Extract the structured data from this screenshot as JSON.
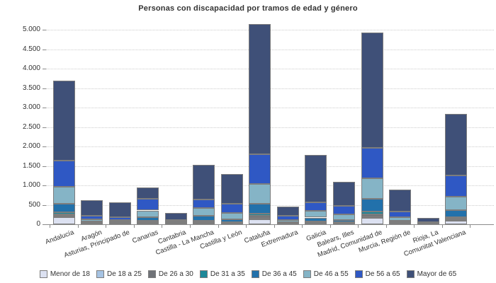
{
  "title": "Personas con discapacidad por tramos de edad y género",
  "chart_data": {
    "type": "bar",
    "stacked": true,
    "title": "Personas con discapacidad por tramos de edad y género",
    "xlabel": "",
    "ylabel": "",
    "ylim": [
      0,
      5200
    ],
    "grid": "horizontal-dotted",
    "legend_position": "bottom",
    "categories": [
      "Andalucía",
      "Aragón",
      "Asturias, Principado de",
      "Canarias",
      "Cantabria",
      "Castilla - La Mancha",
      "Castilla y León",
      "Cataluña",
      "Extremadura",
      "Galicia",
      "Balears, Illes",
      "Madrid, Comunidad de",
      "Murcia, Región de",
      "Rioja, La",
      "Comunitat Valenciana"
    ],
    "yticks": [
      0,
      500,
      1000,
      1500,
      2000,
      2500,
      3000,
      3500,
      4000,
      4500,
      5000
    ],
    "ytick_labels": [
      "0",
      "500",
      "1.000",
      "1.500",
      "2.000",
      "2.500",
      "3.000",
      "3.500",
      "4.000",
      "4.500",
      "5.000"
    ],
    "series": [
      {
        "name": "Menor de 18",
        "color": "#dce1f1",
        "values": [
          190,
          15,
          15,
          40,
          8,
          40,
          25,
          125,
          10,
          30,
          25,
          160,
          25,
          4,
          95
        ]
      },
      {
        "name": "De 18 a 25",
        "color": "#a6c3e3",
        "values": [
          35,
          10,
          8,
          12,
          4,
          12,
          10,
          42,
          5,
          12,
          8,
          42,
          8,
          2,
          30
        ]
      },
      {
        "name": "De 26 a 30",
        "color": "#6f7277",
        "values": [
          35,
          10,
          8,
          13,
          4,
          13,
          10,
          44,
          6,
          13,
          9,
          49,
          9,
          2,
          30
        ]
      },
      {
        "name": "De 31 a 35",
        "color": "#1d8798",
        "values": [
          45,
          10,
          10,
          20,
          6,
          20,
          15,
          55,
          8,
          18,
          12,
          73,
          12,
          3,
          30
        ]
      },
      {
        "name": "De 36 a 45",
        "color": "#2271ab",
        "values": [
          230,
          35,
          30,
          95,
          18,
          130,
          60,
          255,
          30,
          100,
          60,
          333,
          45,
          10,
          180
        ]
      },
      {
        "name": "De 46 a 55",
        "color": "#85b4c6",
        "values": [
          425,
          55,
          45,
          175,
          30,
          205,
          170,
          515,
          47,
          165,
          135,
          532,
          90,
          15,
          350
        ]
      },
      {
        "name": "De 56 a 65",
        "color": "#2f58c4",
        "values": [
          670,
          90,
          70,
          300,
          45,
          220,
          235,
          760,
          105,
          230,
          220,
          771,
          135,
          25,
          545
        ]
      },
      {
        "name": "Mayor de 65",
        "color": "#3f5078",
        "values": [
          2055,
          395,
          374,
          295,
          185,
          880,
          775,
          3349,
          249,
          1212,
          621,
          2970,
          576,
          109,
          1580
        ]
      }
    ]
  },
  "colors": {
    "axis": "#8a8a8a",
    "grid": "#cccccc",
    "text": "#333333",
    "segment_border": "#7d7d7d",
    "background": "#ffffff"
  }
}
